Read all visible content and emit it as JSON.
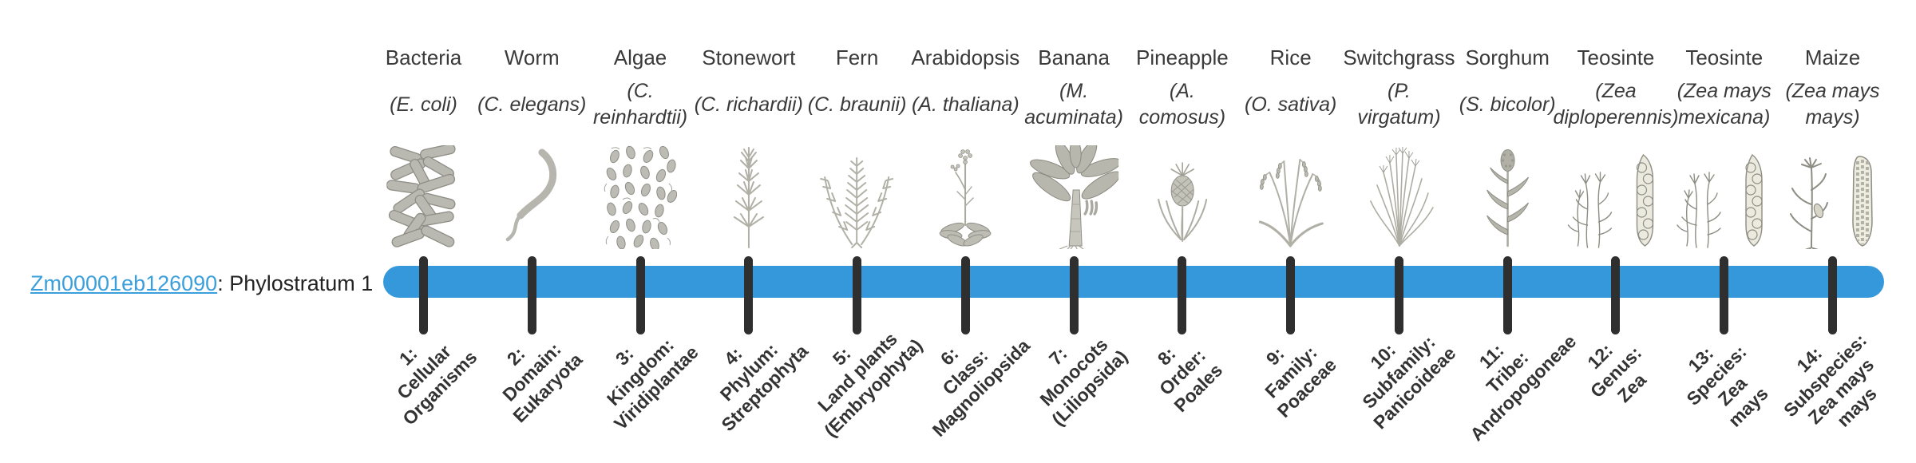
{
  "page": {
    "background": "#ffffff"
  },
  "gene_label": {
    "link_text": "Zm00001eb126090",
    "suffix": ": Phylostratum 1"
  },
  "timeline": {
    "bar_color": "#3598db",
    "tick_color": "#2f2f2f",
    "link_color": "#3b9fdc"
  },
  "columns": [
    {
      "name": "Bacteria",
      "latin": "(E. coli)",
      "icon": "bacteria-icon",
      "stage": "1:\nCellular\nOrganisms"
    },
    {
      "name": "Worm",
      "latin": "(C. elegans)",
      "icon": "worm-icon",
      "stage": "2:\nDomain:\nEukaryota"
    },
    {
      "name": "Algae",
      "latin": "(C.\nreinhardtii)",
      "icon": "algae-icon",
      "stage": "3:\nKingdom:\nViridiplantae"
    },
    {
      "name": "Stonewort",
      "latin": "(C. richardii)",
      "icon": "stonewort-icon",
      "stage": "4:\nPhylum:\nStreptophyta"
    },
    {
      "name": "Fern",
      "latin": "(C. braunii)",
      "icon": "fern-icon",
      "stage": "5:\nLand plants\n(Embryophyta)"
    },
    {
      "name": "Arabidopsis",
      "latin": "(A. thaliana)",
      "icon": "arabidopsis-icon",
      "stage": "6:\nClass:\nMagnoliopsida"
    },
    {
      "name": "Banana",
      "latin": "(M.\nacuminata)",
      "icon": "banana-icon",
      "stage": "7:\nMonocots\n(Liliopsida)"
    },
    {
      "name": "Pineapple",
      "latin": "(A.\ncomosus)",
      "icon": "pineapple-icon",
      "stage": "8:\nOrder:\nPoales"
    },
    {
      "name": "Rice",
      "latin": "(O. sativa)",
      "icon": "rice-icon",
      "stage": "9:\nFamily:\nPoaceae"
    },
    {
      "name": "Switchgrass",
      "latin": "(P.\nvirgatum)",
      "icon": "switchgrass-icon",
      "stage": "10:\nSubfamily:\nPanicoideae"
    },
    {
      "name": "Sorghum",
      "latin": "(S. bicolor)",
      "icon": "sorghum-icon",
      "stage": "11:\nTribe:\nAndropogoneae"
    },
    {
      "name": "Teosinte",
      "latin": "(Zea\ndiploperennis)",
      "icon": "teosinte-icon",
      "stage": "12:\nGenus:\nZea"
    },
    {
      "name": "Teosinte",
      "latin": "(Zea mays\nmexicana)",
      "icon": "teosinte-icon",
      "stage": "13:\nSpecies:\nZea\nmays"
    },
    {
      "name": "Maize",
      "latin": "(Zea mays\nmays)",
      "icon": "maize-icon",
      "stage": "14:\nSubspecies:\nZea mays\nmays"
    }
  ]
}
